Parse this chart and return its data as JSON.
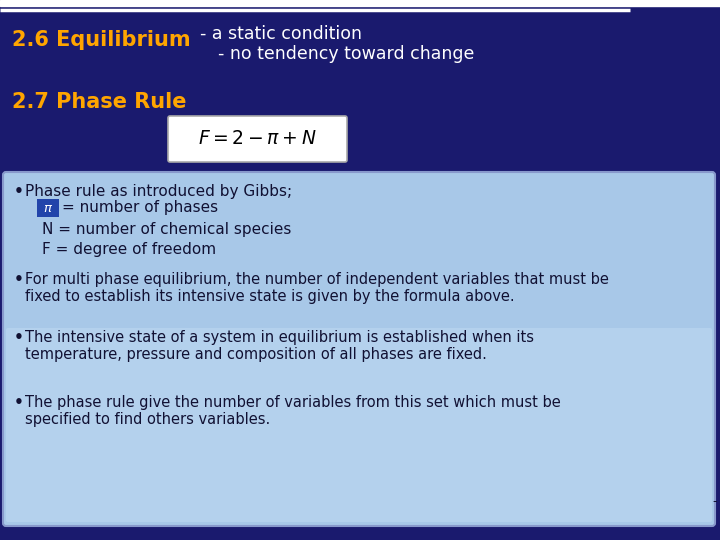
{
  "bg_color": "#1a1a6e",
  "top_bar_color": "#ffffff",
  "title1": "2.6 Equilibrium",
  "title1_color": "#ffa500",
  "title1_desc_line1": "- a static condition",
  "title1_desc_line2": "- no tendency toward change",
  "title1_desc_color": "#ffffff",
  "title2": "2.7 Phase Rule",
  "title2_color": "#ffa500",
  "box_bg": "#a8c8e8",
  "box_border": "#8899bb",
  "bullet_color": "#111133",
  "bullet1_header": "Phase rule as introduced by Gibbs;",
  "bullet1_pi_label": "= number of phases",
  "bullet1_n": "N = number of chemical species",
  "bullet1_f": "F = degree of freedom",
  "bullet2_line1": "For multi phase equilibrium, the number of independent variables that must be",
  "bullet2_line2": "fixed to establish its intensive state is given by the formula above.",
  "bullet3_line1": "The intensive state of a system in equilibrium is established when its",
  "bullet3_line2": "temperature, pressure and composition of all phases are fixed.",
  "bullet4_line1": "The phase rule give the number of variables from this set which must be",
  "bullet4_line2": "specified to find others variables.",
  "pi_box_color": "#2244aa"
}
